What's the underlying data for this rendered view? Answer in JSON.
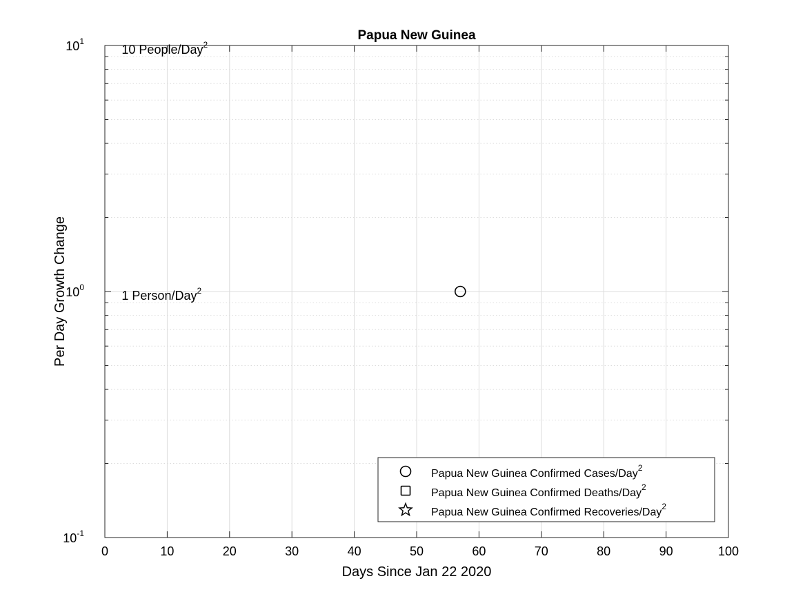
{
  "chart_data": {
    "type": "scatter",
    "title": "Papua New Guinea",
    "xlabel": "Days Since Jan 22 2020",
    "ylabel": "Per Day Growth Change",
    "xlim": [
      0,
      100
    ],
    "ylim": [
      0.1,
      10
    ],
    "yscale": "log",
    "grid": true,
    "x_ticks": [
      0,
      10,
      20,
      30,
      40,
      50,
      60,
      70,
      80,
      90,
      100
    ],
    "y_ticks": [
      {
        "value": 0.1,
        "base": "10",
        "exp": "-1"
      },
      {
        "value": 1,
        "base": "10",
        "exp": "0"
      },
      {
        "value": 10,
        "base": "10",
        "exp": "1"
      }
    ],
    "annotations": [
      {
        "text": "10 People/Day",
        "sup": "2",
        "x": 2.7,
        "y": 10
      },
      {
        "text": "1 Person/Day",
        "sup": "2",
        "x": 2.7,
        "y": 1
      }
    ],
    "series": [
      {
        "name": "Papua New Guinea Confirmed Cases/Day",
        "sup": "2",
        "marker": "circle",
        "x": [
          57
        ],
        "y": [
          1
        ]
      },
      {
        "name": "Papua New Guinea Confirmed Deaths/Day",
        "sup": "2",
        "marker": "square",
        "x": [],
        "y": []
      },
      {
        "name": "Papua New Guinea Confirmed Recoveries/Day",
        "sup": "2",
        "marker": "star",
        "x": [],
        "y": []
      }
    ],
    "legend_position": "bottom-right",
    "colors": {
      "grid": "#dcdcdc",
      "axis": "#262626",
      "marker": "#000000"
    }
  }
}
